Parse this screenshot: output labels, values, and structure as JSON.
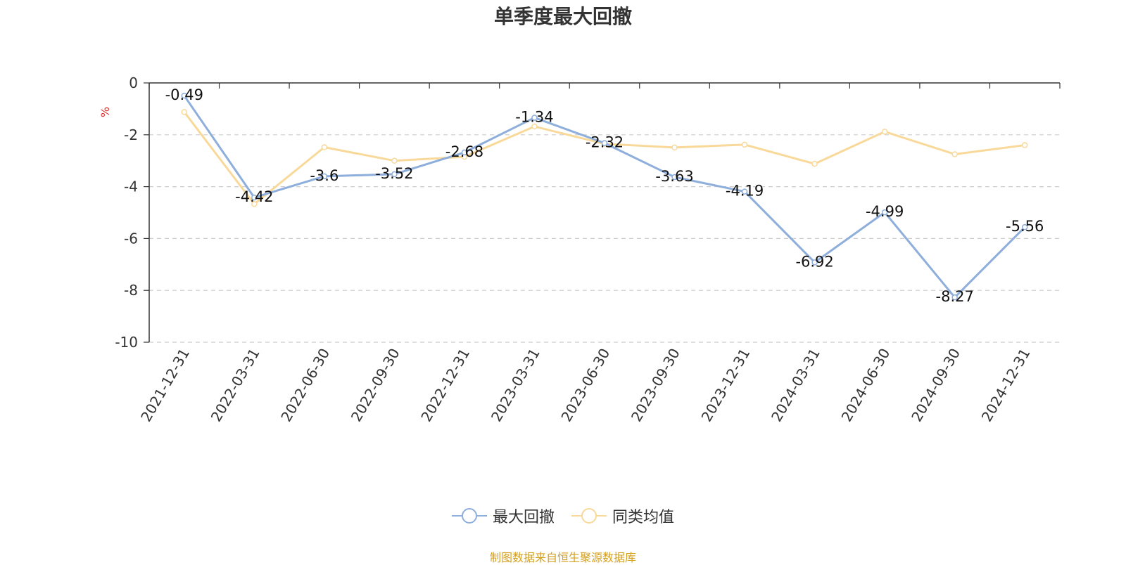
{
  "chart_data": {
    "type": "line",
    "title": "单季度最大回撤",
    "ylabel": "%",
    "ylim": [
      -10,
      0
    ],
    "yticks": [
      0,
      -2,
      -4,
      -6,
      -8,
      -10
    ],
    "grid": true,
    "legend_position": "bottom-center",
    "categories": [
      "2021-12-31",
      "2022-03-31",
      "2022-06-30",
      "2022-09-30",
      "2022-12-31",
      "2023-03-31",
      "2023-06-30",
      "2023-09-30",
      "2023-12-31",
      "2024-03-31",
      "2024-06-30",
      "2024-09-30",
      "2024-12-31"
    ],
    "series": [
      {
        "name": "最大回撤",
        "color": "#8eaedb",
        "values": [
          -0.49,
          -4.42,
          -3.6,
          -3.52,
          -2.68,
          -1.34,
          -2.32,
          -3.63,
          -4.19,
          -6.92,
          -4.99,
          -8.27,
          -5.56
        ],
        "show_labels": true
      },
      {
        "name": "同类均值",
        "color": "#f9d99a",
        "values": [
          -1.12,
          -4.67,
          -2.48,
          -3.0,
          -2.85,
          -1.68,
          -2.35,
          -2.49,
          -2.38,
          -3.12,
          -1.88,
          -2.75,
          -2.4
        ],
        "show_labels": false
      }
    ]
  },
  "source_note": "制图数据来自恒生聚源数据库"
}
